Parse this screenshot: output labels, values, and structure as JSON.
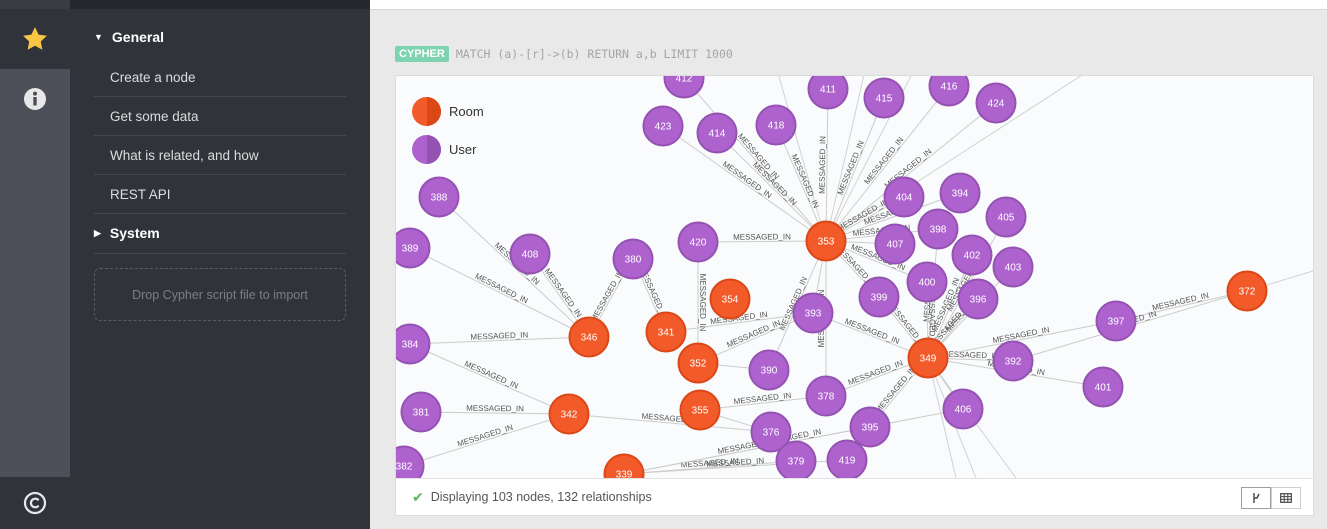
{
  "sidebar": {
    "icons": [
      {
        "name": "star-icon",
        "active": true
      },
      {
        "name": "info-icon",
        "active": false
      },
      {
        "name": "copyright-icon",
        "active": false
      }
    ]
  },
  "drawer": {
    "general_title": "General",
    "general_items": [
      "Create a node",
      "Get some data",
      "What is related, and how",
      "REST API"
    ],
    "system_title": "System",
    "drop_zone": "Drop Cypher script file to import"
  },
  "frame": {
    "badge": "CYPHER",
    "query": "MATCH (a)-[r]->(b) RETURN a,b LIMIT 1000",
    "legend": [
      {
        "label": "Room",
        "color": "#f25a29",
        "stroke": "#dc4717"
      },
      {
        "label": "User",
        "color": "#ad62ce",
        "stroke": "#9453b1"
      }
    ],
    "status": "Displaying 103 nodes, 132 relationships",
    "view_graph_label": "graph",
    "view_table_label": "table"
  },
  "graph": {
    "relationship_label": "MESSAGED_IN",
    "nodes": [
      {
        "id": "353",
        "type": "Room"
      },
      {
        "id": "346",
        "type": "Room"
      },
      {
        "id": "342",
        "type": "Room"
      },
      {
        "id": "341",
        "type": "Room"
      },
      {
        "id": "352",
        "type": "Room"
      },
      {
        "id": "355",
        "type": "Room"
      },
      {
        "id": "354",
        "type": "Room"
      },
      {
        "id": "349",
        "type": "Room"
      },
      {
        "id": "372",
        "type": "Room"
      },
      {
        "id": "339",
        "type": "Room"
      },
      {
        "id": "412",
        "type": "User"
      },
      {
        "id": "411",
        "type": "User"
      },
      {
        "id": "415",
        "type": "User"
      },
      {
        "id": "416",
        "type": "User"
      },
      {
        "id": "424",
        "type": "User"
      },
      {
        "id": "423",
        "type": "User"
      },
      {
        "id": "414",
        "type": "User"
      },
      {
        "id": "418",
        "type": "User"
      },
      {
        "id": "388",
        "type": "User"
      },
      {
        "id": "389",
        "type": "User"
      },
      {
        "id": "408",
        "type": "User"
      },
      {
        "id": "380",
        "type": "User"
      },
      {
        "id": "420",
        "type": "User"
      },
      {
        "id": "404",
        "type": "User"
      },
      {
        "id": "394",
        "type": "User"
      },
      {
        "id": "405",
        "type": "User"
      },
      {
        "id": "398",
        "type": "User"
      },
      {
        "id": "407",
        "type": "User"
      },
      {
        "id": "402",
        "type": "User"
      },
      {
        "id": "403",
        "type": "User"
      },
      {
        "id": "400",
        "type": "User"
      },
      {
        "id": "399",
        "type": "User"
      },
      {
        "id": "396",
        "type": "User"
      },
      {
        "id": "393",
        "type": "User"
      },
      {
        "id": "390",
        "type": "User"
      },
      {
        "id": "378",
        "type": "User"
      },
      {
        "id": "392",
        "type": "User"
      },
      {
        "id": "397",
        "type": "User"
      },
      {
        "id": "401",
        "type": "User"
      },
      {
        "id": "406",
        "type": "User"
      },
      {
        "id": "384",
        "type": "User"
      },
      {
        "id": "381",
        "type": "User"
      },
      {
        "id": "376",
        "type": "User"
      },
      {
        "id": "395",
        "type": "User"
      },
      {
        "id": "379",
        "type": "User"
      },
      {
        "id": "419",
        "type": "User"
      },
      {
        "id": "382",
        "type": "User"
      }
    ],
    "edges": [
      [
        "412",
        "353"
      ],
      [
        "411",
        "353"
      ],
      [
        "415",
        "353"
      ],
      [
        "416",
        "353"
      ],
      [
        "424",
        "353"
      ],
      [
        "423",
        "353"
      ],
      [
        "414",
        "353"
      ],
      [
        "418",
        "353"
      ],
      [
        "404",
        "353"
      ],
      [
        "394",
        "353"
      ],
      [
        "398",
        "353"
      ],
      [
        "407",
        "353"
      ],
      [
        "420",
        "353"
      ],
      [
        "399",
        "353"
      ],
      [
        "400",
        "353"
      ],
      [
        "393",
        "353"
      ],
      [
        "378",
        "353"
      ],
      [
        "390",
        "353"
      ],
      [
        "388",
        "346"
      ],
      [
        "389",
        "346"
      ],
      [
        "408",
        "346"
      ],
      [
        "384",
        "346"
      ],
      [
        "380",
        "341"
      ],
      [
        "380",
        "346"
      ],
      [
        "384",
        "342"
      ],
      [
        "381",
        "342"
      ],
      [
        "382",
        "342"
      ],
      [
        "376",
        "342"
      ],
      [
        "420",
        "352"
      ],
      [
        "393",
        "352"
      ],
      [
        "390",
        "352"
      ],
      [
        "378",
        "355"
      ],
      [
        "376",
        "355"
      ],
      [
        "393",
        "341"
      ],
      [
        "398",
        "349"
      ],
      [
        "402",
        "349"
      ],
      [
        "403",
        "349"
      ],
      [
        "405",
        "349"
      ],
      [
        "396",
        "349"
      ],
      [
        "400",
        "349"
      ],
      [
        "399",
        "349"
      ],
      [
        "392",
        "349"
      ],
      [
        "397",
        "349"
      ],
      [
        "401",
        "349"
      ],
      [
        "406",
        "349"
      ],
      [
        "395",
        "349"
      ],
      [
        "378",
        "349"
      ],
      [
        "393",
        "349"
      ],
      [
        "397",
        "372"
      ],
      [
        "392",
        "372"
      ],
      [
        "379",
        "339"
      ],
      [
        "419",
        "339"
      ],
      [
        "395",
        "339"
      ],
      [
        "406",
        "339"
      ]
    ]
  }
}
